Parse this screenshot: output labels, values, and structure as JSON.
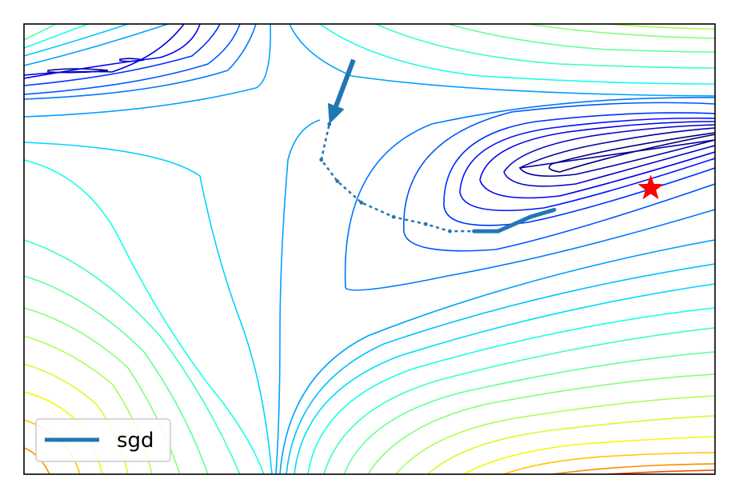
{
  "chart_data": {
    "type": "line",
    "title": "",
    "xlabel": "",
    "ylabel": "",
    "grid": false,
    "axes_ticks_visible": false,
    "background": "contour",
    "colormap": "jet",
    "legend": {
      "placement": "lower-left",
      "entries": [
        {
          "label": "sgd",
          "color": "#1f77b4"
        }
      ]
    },
    "series": [
      {
        "name": "sgd",
        "color": "#1f77b4",
        "x": [
          0.44,
          0.41,
          0.4,
          0.42,
          0.45,
          0.49,
          0.53,
          0.56,
          0.59,
          0.62,
          0.66,
          0.69
        ],
        "y": [
          0.58,
          0.49,
          0.44,
          0.41,
          0.38,
          0.36,
          0.35,
          0.34,
          0.34,
          0.34,
          0.36,
          0.37
        ]
      }
    ],
    "xlim": [
      0.03,
      0.89
    ],
    "ylim": [
      0.0,
      0.63
    ],
    "minimum_marker": {
      "x": 0.81,
      "y": 0.4,
      "color": "#ff0000",
      "shape": "star"
    }
  }
}
